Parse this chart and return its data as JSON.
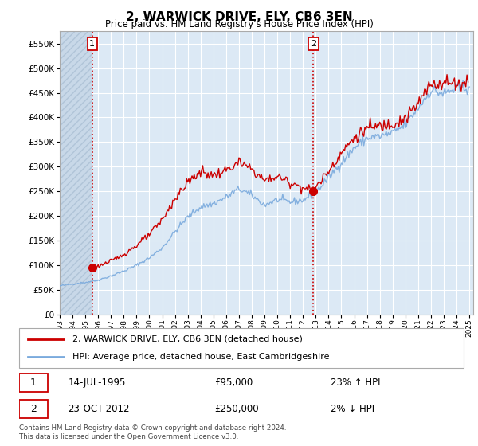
{
  "title": "2, WARWICK DRIVE, ELY, CB6 3EN",
  "subtitle": "Price paid vs. HM Land Registry's House Price Index (HPI)",
  "legend_line1": "2, WARWICK DRIVE, ELY, CB6 3EN (detached house)",
  "legend_line2": "HPI: Average price, detached house, East Cambridgeshire",
  "sale1_date": "14-JUL-1995",
  "sale1_price": "£95,000",
  "sale1_hpi": "23% ↑ HPI",
  "sale1_year": 1995.54,
  "sale1_value": 95000,
  "sale2_date": "23-OCT-2012",
  "sale2_price": "£250,000",
  "sale2_hpi": "2% ↓ HPI",
  "sale2_year": 2012.81,
  "sale2_value": 250000,
  "footer": "Contains HM Land Registry data © Crown copyright and database right 2024.\nThis data is licensed under the Open Government Licence v3.0.",
  "price_color": "#cc0000",
  "hpi_color": "#7aaadd",
  "vline_color": "#cc0000",
  "bg_color": "#dce9f5",
  "hatch_color": "#c8d8e8",
  "grid_color": "#ffffff",
  "ylim": [
    0,
    575000
  ],
  "yticks": [
    0,
    50000,
    100000,
    150000,
    200000,
    250000,
    300000,
    350000,
    400000,
    450000,
    500000,
    550000
  ],
  "xlim_start": 1993.0,
  "xlim_end": 2025.3
}
